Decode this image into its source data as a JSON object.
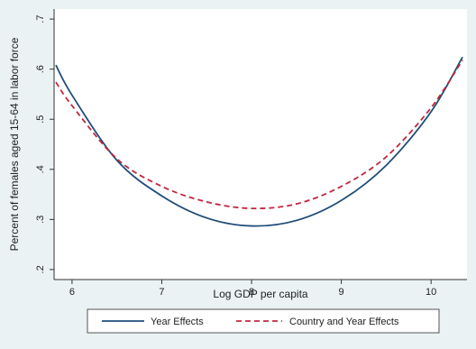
{
  "chart_data": {
    "type": "line",
    "title": "",
    "xlabel": "Log GDP per capita",
    "ylabel": "Percent of females aged 15-64 in labor force",
    "xlim": [
      5.8,
      10.4
    ],
    "ylim": [
      0.18,
      0.72
    ],
    "xticks": [
      6,
      7,
      8,
      9,
      10
    ],
    "xtick_labels": [
      "6",
      "7",
      "8",
      "9",
      "10"
    ],
    "yticks": [
      0.2,
      0.3,
      0.4,
      0.5,
      0.6,
      0.7
    ],
    "ytick_labels": [
      ".2",
      ".3",
      ".4",
      ".5",
      ".6",
      ".7"
    ],
    "grid": false,
    "legend_position": "bottom",
    "series": [
      {
        "name": "Year Effects",
        "color": "#1f4e79",
        "style": "solid",
        "x": [
          5.82,
          6.0,
          6.5,
          7.0,
          7.5,
          8.0,
          8.5,
          9.0,
          9.5,
          10.0,
          10.35
        ],
        "y": [
          0.608,
          0.548,
          0.418,
          0.347,
          0.303,
          0.287,
          0.298,
          0.338,
          0.408,
          0.515,
          0.624
        ]
      },
      {
        "name": "Country and Year Effects",
        "color": "#c0273f",
        "style": "dashed",
        "x": [
          5.82,
          6.0,
          6.5,
          7.0,
          7.5,
          8.0,
          8.5,
          9.0,
          9.5,
          10.0,
          10.35
        ],
        "y": [
          0.574,
          0.527,
          0.421,
          0.366,
          0.335,
          0.322,
          0.331,
          0.366,
          0.425,
          0.523,
          0.618
        ]
      }
    ]
  }
}
